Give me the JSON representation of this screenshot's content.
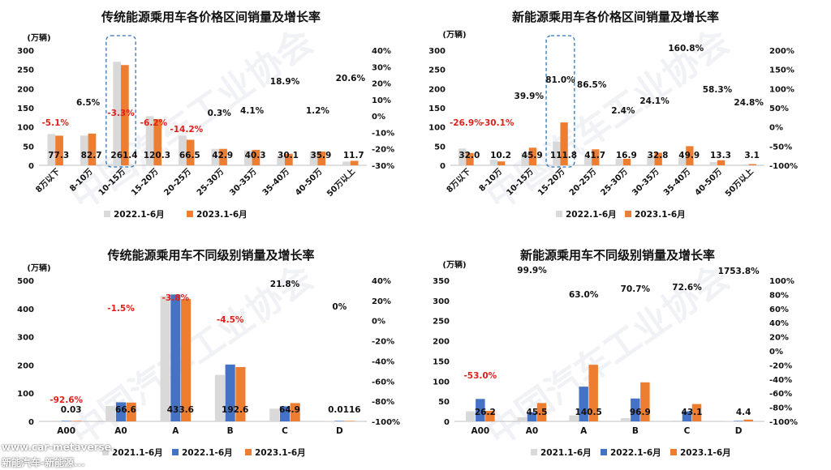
{
  "chart_data": [
    {
      "type": "bar",
      "title": "传统能源乘用车各价格区间销量及增长率",
      "unit": "(万辆)",
      "categories": [
        "8万以下",
        "8-10万",
        "10-15万",
        "15-20万",
        "20-25万",
        "25-30万",
        "30-35万",
        "35-40万",
        "40-50万",
        "50万以上"
      ],
      "series": [
        {
          "name": "2022.1-6月",
          "color": "#d9d9d9",
          "values": [
            81.5,
            77.7,
            270.0,
            128.0,
            77.5,
            42.8,
            38.7,
            25.3,
            35.5,
            9.7
          ]
        },
        {
          "name": "2023.1-6月",
          "color": "#ed7d31",
          "values": [
            77.3,
            82.7,
            261.4,
            120.3,
            66.5,
            42.9,
            40.3,
            30.1,
            35.9,
            11.7
          ]
        }
      ],
      "value_labels": [
        "77.3",
        "82.7",
        "261.4",
        "120.3",
        "66.5",
        "42.9",
        "40.3",
        "30.1",
        "35.9",
        "11.7"
      ],
      "growth_labels": [
        "-5.1%",
        "6.5%",
        "-3.3%",
        "-6.2%",
        "-14.2%",
        "0.3%",
        "4.1%",
        "18.9%",
        "1.2%",
        "20.6%"
      ],
      "growth_values": [
        -5.1,
        6.5,
        -3.3,
        -6.2,
        -14.2,
        0.3,
        4.1,
        18.9,
        1.2,
        20.6
      ],
      "ylim": [
        0,
        300
      ],
      "yticks": [
        "0",
        "50",
        "100",
        "150",
        "200",
        "250",
        "300"
      ],
      "y2lim": [
        -30,
        40
      ],
      "y2ticks": [
        "-30%",
        "-20%",
        "-10%",
        "0%",
        "10%",
        "20%",
        "30%",
        "40%"
      ],
      "highlight_category": "10-15万",
      "legend": "bottom"
    },
    {
      "type": "bar",
      "title": "新能源乘用车各价格区间销量及增长率",
      "unit": "(万辆)",
      "categories": [
        "8万以下",
        "8-10万",
        "10-15万",
        "15-20万",
        "20-25万",
        "25-30万",
        "30-35万",
        "35-40万",
        "40-50万",
        "50万以上"
      ],
      "series": [
        {
          "name": "2022.1-6月",
          "color": "#d9d9d9",
          "values": [
            43.8,
            14.6,
            32.8,
            61.8,
            22.4,
            16.5,
            26.4,
            19.1,
            8.4,
            2.5
          ]
        },
        {
          "name": "2023.1-6月",
          "color": "#ed7d31",
          "values": [
            32.0,
            10.2,
            45.9,
            111.8,
            41.7,
            16.9,
            32.8,
            49.9,
            13.3,
            3.1
          ]
        }
      ],
      "value_labels": [
        "32.0",
        "10.2",
        "45.9",
        "111.8",
        "41.7",
        "16.9",
        "32.8",
        "49.9",
        "13.3",
        "3.1"
      ],
      "growth_labels": [
        "-26.9%",
        "-30.1%",
        "39.9%",
        "81.0%",
        "86.5%",
        "2.4%",
        "24.1%",
        "160.8%",
        "58.3%",
        "24.8%"
      ],
      "growth_values": [
        -26.9,
        -30.1,
        39.9,
        81.0,
        86.5,
        2.4,
        24.1,
        160.8,
        58.3,
        24.8
      ],
      "ylim": [
        0,
        300
      ],
      "yticks": [
        "0",
        "50",
        "100",
        "150",
        "200",
        "250",
        "300"
      ],
      "y2lim": [
        -100,
        200
      ],
      "y2ticks": [
        "-100%",
        "-50%",
        "0%",
        "50%",
        "100%",
        "150%",
        "200%"
      ],
      "highlight_category": "15-20万",
      "legend": "bottom"
    },
    {
      "type": "bar",
      "title": "传统能源乘用车不同级别销量及增长率",
      "unit": "(万辆)",
      "categories": [
        "A00",
        "A0",
        "A",
        "B",
        "C",
        "D"
      ],
      "series": [
        {
          "name": "2021.1-6月",
          "color": "#d9d9d9",
          "values": [
            2.5,
            55.0,
            445.0,
            165.0,
            45.0,
            0.02
          ]
        },
        {
          "name": "2022.1-6月",
          "color": "#4472c4",
          "values": [
            0.4,
            67.6,
            450.0,
            201.6,
            53.3,
            0.0116
          ]
        },
        {
          "name": "2023.1-6月",
          "color": "#ed7d31",
          "values": [
            0.03,
            66.6,
            433.6,
            192.6,
            64.9,
            0.0116
          ]
        }
      ],
      "value_labels": [
        "0.03",
        "66.6",
        "433.6",
        "192.6",
        "64.9",
        "0.0116"
      ],
      "growth_labels": [
        "-92.6%",
        "-1.5%",
        "-3.8%",
        "-4.5%",
        "21.8%",
        "0%"
      ],
      "growth_values": [
        -92.6,
        -1.5,
        -3.8,
        -4.5,
        21.8,
        0
      ],
      "ylim": [
        0,
        500
      ],
      "yticks": [
        "0",
        "100",
        "200",
        "300",
        "400",
        "500"
      ],
      "y2lim": [
        -100,
        40
      ],
      "y2ticks": [
        "-100%",
        "-80%",
        "-60%",
        "-40%",
        "-20%",
        "0%",
        "20%",
        "40%"
      ],
      "legend": "bottom"
    },
    {
      "type": "bar",
      "title": "新能源乘用车不同级别销量及增长率",
      "unit": "(万辆)",
      "categories": [
        "A00",
        "A0",
        "A",
        "B",
        "C",
        "D"
      ],
      "series": [
        {
          "name": "2021.1-6月",
          "color": "#d9d9d9",
          "values": [
            25.0,
            10.0,
            15.0,
            8.0,
            2.0,
            0.1
          ]
        },
        {
          "name": "2022.1-6月",
          "color": "#4472c4",
          "values": [
            55.7,
            22.8,
            86.2,
            56.8,
            25.0,
            0.2
          ]
        },
        {
          "name": "2023.1-6月",
          "color": "#ed7d31",
          "values": [
            26.2,
            45.5,
            140.5,
            96.9,
            43.1,
            4.4
          ]
        }
      ],
      "value_labels": [
        "26.2",
        "45.5",
        "140.5",
        "96.9",
        "43.1",
        "4.4"
      ],
      "growth_labels": [
        "-53.0%",
        "99.9%",
        "63.0%",
        "70.7%",
        "72.6%",
        "1753.8%"
      ],
      "growth_values": [
        -53.0,
        99.9,
        63.0,
        70.7,
        72.6,
        1753.8
      ],
      "ylim": [
        0,
        350
      ],
      "yticks": [
        "0",
        "50",
        "100",
        "150",
        "200",
        "250",
        "300",
        "350"
      ],
      "y2lim": [
        -100,
        100
      ],
      "y2ticks": [
        "-100%",
        "-80%",
        "-60%",
        "-40%",
        "-20%",
        "0%",
        "20%",
        "40%",
        "60%",
        "80%",
        "100%"
      ],
      "legend": "bottom"
    }
  ],
  "watermark": {
    "line1": "www.car-metaverse.",
    "line2": "新能汽车-新能源..."
  }
}
